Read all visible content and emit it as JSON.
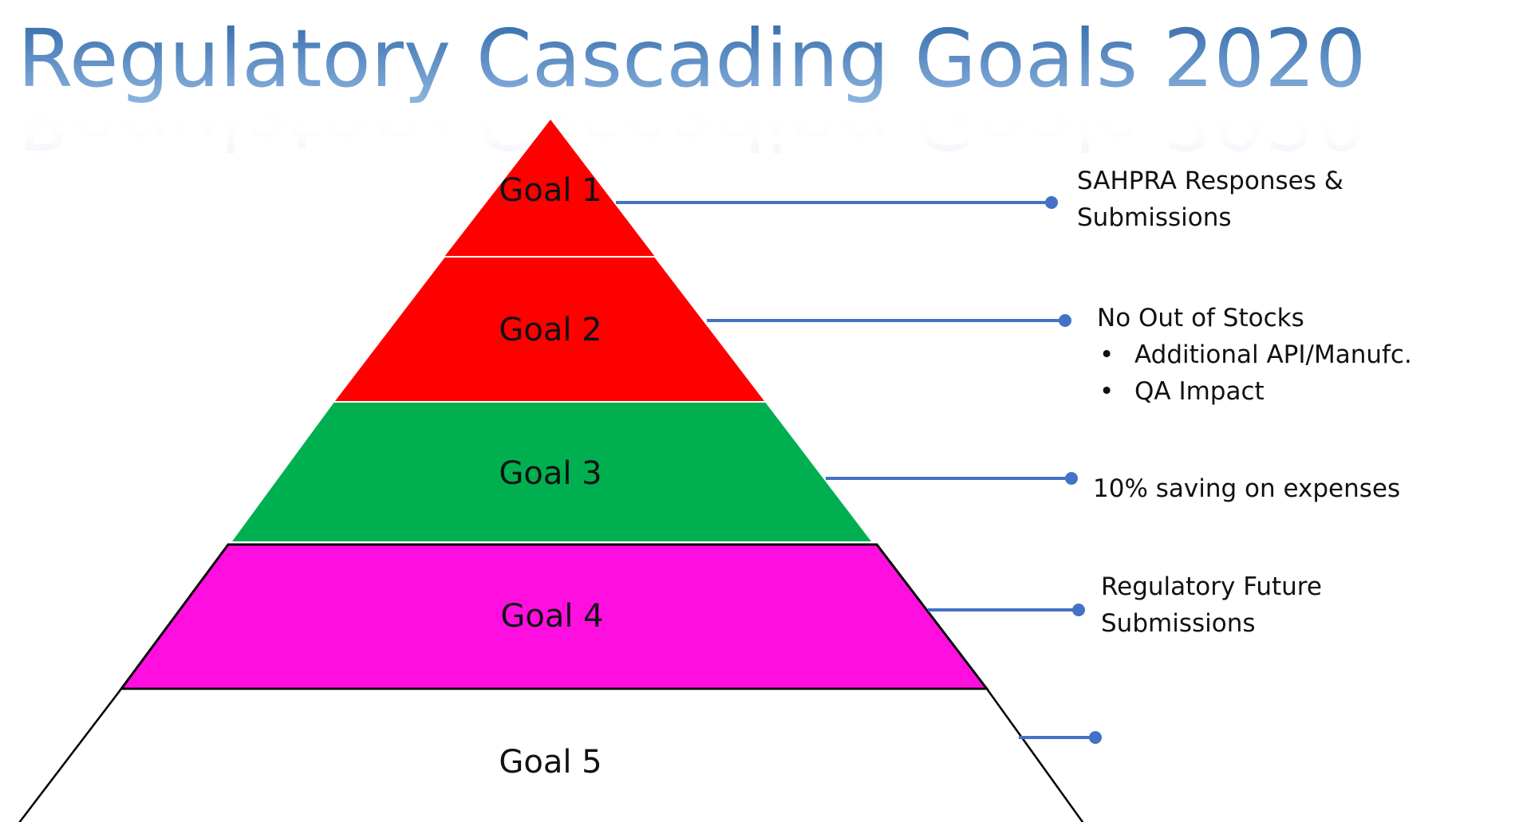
{
  "title": "Regulatory Cascading Goals 2020",
  "colors": {
    "title_top": "#3f78b5",
    "title_bottom": "#a9c6e6",
    "connector": "#4472c4",
    "outline": "#000000"
  },
  "goals": [
    {
      "label": "Goal 1",
      "fill": "#ff0000",
      "description": [
        "SAHPRA Responses &",
        "Submissions"
      ]
    },
    {
      "label": "Goal 2",
      "fill": "#ff0000",
      "description": [
        "No Out of Stocks"
      ],
      "bullets": [
        "Additional API/Manufc.",
        "QA Impact"
      ]
    },
    {
      "label": "Goal 3",
      "fill": "#00b050",
      "description": [
        "10% saving on expenses"
      ]
    },
    {
      "label": "Goal 4",
      "fill": "#ff0fdf",
      "description": [
        "Regulatory Future",
        "Submissions"
      ]
    },
    {
      "label": "Goal 5",
      "fill": "#ffffff",
      "description": []
    }
  ],
  "bullet_glyph": "•"
}
